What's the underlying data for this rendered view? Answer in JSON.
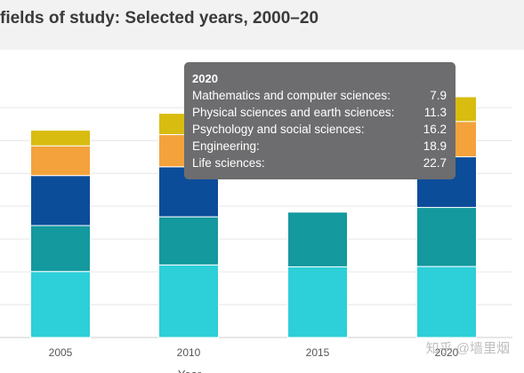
{
  "page": {
    "title": "fields of study: Selected years, 2000–20",
    "watermark": "知乎 @墙里烟"
  },
  "chart_data": {
    "type": "bar",
    "stacked": true,
    "title": "fields of study: Selected years, 2000–20",
    "xlabel": "Year",
    "ylabel": "",
    "categories": [
      "2005",
      "2010",
      "2015",
      "2020"
    ],
    "series": [
      {
        "name": "Life sciences",
        "color": "#2dcfd9",
        "values": [
          21.1,
          23.2,
          22.6,
          22.7
        ]
      },
      {
        "name": "Engineering",
        "color": "#13999e",
        "values": [
          14.7,
          15.4,
          17.5,
          18.9
        ]
      },
      {
        "name": "Psychology and social sciences",
        "color": "#0c4d9a",
        "values": [
          16.0,
          16.0,
          null,
          16.2
        ]
      },
      {
        "name": "Physical sciences and earth sciences",
        "color": "#f4a23c",
        "values": [
          9.5,
          10.3,
          null,
          11.3
        ]
      },
      {
        "name": "Mathematics and computer sciences",
        "color": "#d8bc10",
        "values": [
          5.0,
          6.8,
          null,
          7.9
        ]
      }
    ],
    "ylim": [
      0,
      80
    ],
    "grid": true,
    "legend": "none",
    "tooltip": {
      "title": "2020",
      "rows": [
        {
          "label": "Mathematics and computer sciences:",
          "value": "7.9"
        },
        {
          "label": "Physical sciences and earth sciences:",
          "value": "11.3"
        },
        {
          "label": "Psychology and social sciences:",
          "value": "16.2"
        },
        {
          "label": "Engineering:",
          "value": "18.9"
        },
        {
          "label": "Life sciences:",
          "value": "22.7"
        }
      ]
    }
  }
}
